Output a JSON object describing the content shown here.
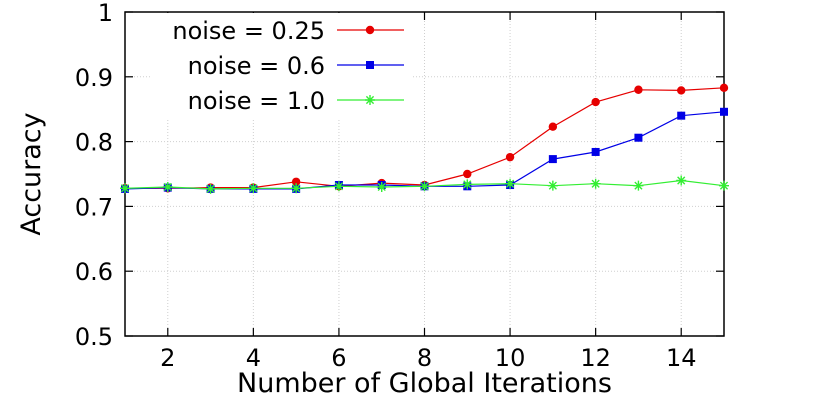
{
  "chart_data": {
    "type": "line",
    "xlabel": "Number of Global Iterations",
    "ylabel": "Accuracy",
    "xlim": [
      1,
      15
    ],
    "ylim": [
      0.5,
      1.0
    ],
    "x": [
      1,
      2,
      3,
      4,
      5,
      6,
      7,
      8,
      9,
      10,
      11,
      12,
      13,
      14,
      15
    ],
    "x_ticks": [
      2,
      4,
      6,
      8,
      10,
      12,
      14
    ],
    "y_ticks": [
      0.5,
      0.6,
      0.7,
      0.8,
      0.9,
      1.0
    ],
    "y_tick_labels": [
      "0.5",
      "0.6",
      "0.7",
      "0.8",
      "0.9",
      "1"
    ],
    "grid": true,
    "legend_position": "top-left",
    "series": [
      {
        "name": "noise = 0.25",
        "color": "#e60000",
        "marker": "circle",
        "values": [
          0.728,
          0.728,
          0.729,
          0.729,
          0.738,
          0.731,
          0.736,
          0.733,
          0.75,
          0.776,
          0.823,
          0.861,
          0.88,
          0.879,
          0.883
        ]
      },
      {
        "name": "noise = 0.6",
        "color": "#0000e6",
        "marker": "square",
        "values": [
          0.727,
          0.729,
          0.727,
          0.727,
          0.727,
          0.733,
          0.733,
          0.731,
          0.731,
          0.733,
          0.773,
          0.784,
          0.806,
          0.84,
          0.846
        ]
      },
      {
        "name": "noise = 1.0",
        "color": "#33ee33",
        "marker": "star",
        "values": [
          0.728,
          0.73,
          0.727,
          0.728,
          0.728,
          0.731,
          0.73,
          0.731,
          0.734,
          0.735,
          0.732,
          0.735,
          0.732,
          0.74,
          0.732
        ]
      }
    ]
  }
}
